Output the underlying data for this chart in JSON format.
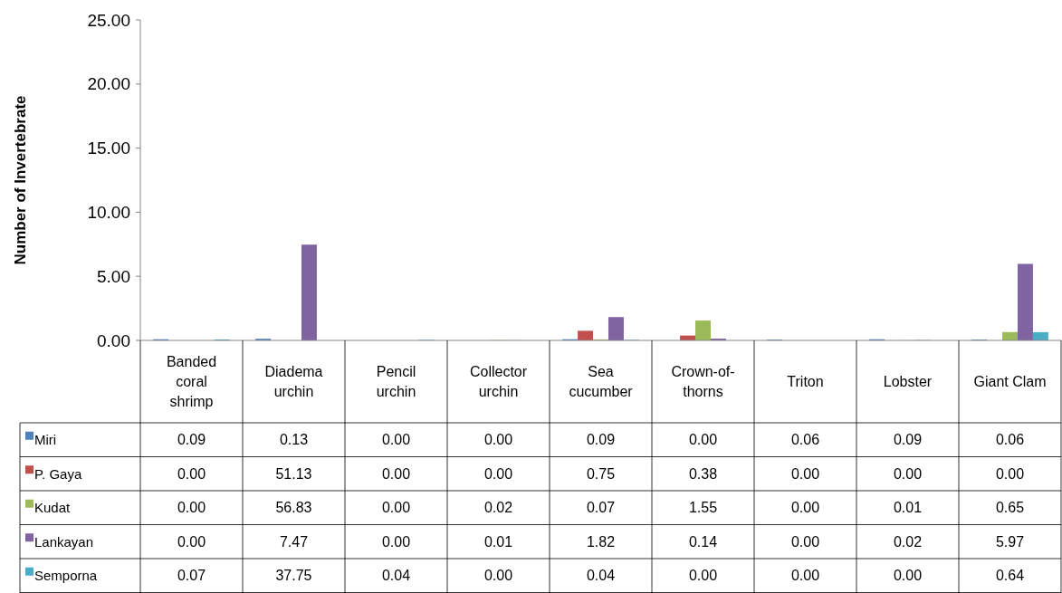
{
  "chart_data": {
    "type": "bar",
    "ylabel": "Number of Invertebrate",
    "categories": [
      "Banded coral shrimp",
      "Diadema urchin",
      "Pencil urchin",
      "Collector urchin",
      "Sea cucumber",
      "Crown-of-thorns",
      "Triton",
      "Lobster",
      "Giant Clam"
    ],
    "series": [
      {
        "name": "Miri",
        "color": "#4f81bd",
        "values": [
          0.09,
          0.13,
          0.0,
          0.0,
          0.09,
          0.0,
          0.06,
          0.09,
          0.06
        ],
        "value_labels": [
          "0.09",
          "0.13",
          "0.00",
          "0.00",
          "0.09",
          "0.00",
          "0.06",
          "0.09",
          "0.06"
        ]
      },
      {
        "name": "P. Gaya",
        "color": "#c0504d",
        "values": [
          0.0,
          null,
          0.0,
          0.0,
          0.75,
          0.38,
          0.0,
          0.0,
          0.0
        ],
        "value_labels": [
          "0.00",
          "51.13",
          "0.00",
          "0.00",
          "0.75",
          "0.38",
          "0.00",
          "0.00",
          "0.00"
        ]
      },
      {
        "name": "Kudat",
        "color": "#9bbb59",
        "values": [
          0.0,
          null,
          0.0,
          0.02,
          0.07,
          1.55,
          0.0,
          0.01,
          0.65
        ],
        "value_labels": [
          "0.00",
          "56.83",
          "0.00",
          "0.02",
          "0.07",
          "1.55",
          "0.00",
          "0.01",
          "0.65"
        ]
      },
      {
        "name": "Lankayan",
        "color": "#8064a2",
        "values": [
          0.0,
          7.47,
          0.0,
          0.01,
          1.82,
          0.14,
          0.0,
          0.02,
          5.97
        ],
        "value_labels": [
          "0.00",
          "7.47",
          "0.00",
          "0.01",
          "1.82",
          "0.14",
          "0.00",
          "0.02",
          "5.97"
        ]
      },
      {
        "name": "Semporna",
        "color": "#4bacc6",
        "values": [
          0.07,
          null,
          0.04,
          0.0,
          0.04,
          0.0,
          0.0,
          0.0,
          0.64
        ],
        "value_labels": [
          "0.07",
          "37.75",
          "0.04",
          "0.00",
          "0.04",
          "0.00",
          "0.00",
          "0.00",
          "0.64"
        ]
      }
    ],
    "ylim": [
      0,
      25
    ],
    "yticks": [
      {
        "value": 0,
        "label": "0.00"
      },
      {
        "value": 5,
        "label": "5.00"
      },
      {
        "value": 10,
        "label": "10.00"
      },
      {
        "value": 15,
        "label": "15.00"
      },
      {
        "value": 20,
        "label": "20.00"
      },
      {
        "value": 25,
        "label": "25.00"
      }
    ],
    "legend": "bottom",
    "grid": false
  }
}
